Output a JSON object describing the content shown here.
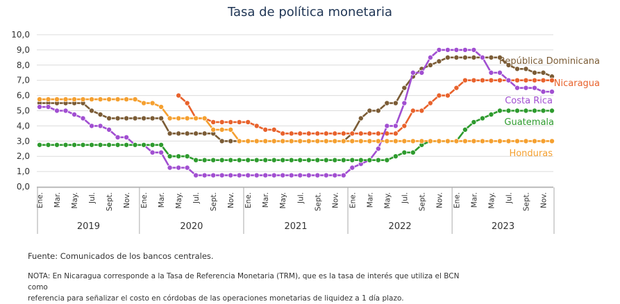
{
  "chart_data": {
    "type": "line",
    "title": "Tasa de política monetaria",
    "xlabel": "",
    "ylabel": "",
    "ylim": [
      0,
      10
    ],
    "y_tick_labels": [
      "0,0",
      "1,0",
      "2,0",
      "3,0",
      "4,0",
      "5,0",
      "6,0",
      "7,0",
      "8,0",
      "9,0",
      "10,0"
    ],
    "grid": "horizontal",
    "legend": "inline labels at right end of series",
    "x_month_labels": [
      "Ene.",
      "Mar.",
      "May.",
      "Jul.",
      "Sept.",
      "Nov."
    ],
    "years": [
      "2019",
      "2020",
      "2021",
      "2022",
      "2023"
    ],
    "x_start": "2019-01",
    "x_end": "2023-11",
    "series": [
      {
        "name": "República Dominicana",
        "color": "#7b5c36",
        "values": [
          5.5,
          5.5,
          5.5,
          5.5,
          5.5,
          5.5,
          5.0,
          4.75,
          4.5,
          4.5,
          4.5,
          4.5,
          4.5,
          4.5,
          4.5,
          3.5,
          3.5,
          3.5,
          3.5,
          3.5,
          3.5,
          3.0,
          3.0,
          3.0,
          3.0,
          3.0,
          3.0,
          3.0,
          3.0,
          3.0,
          3.0,
          3.0,
          3.0,
          3.0,
          3.0,
          3.0,
          3.5,
          4.5,
          5.0,
          5.0,
          5.5,
          5.5,
          6.5,
          7.25,
          7.75,
          8.0,
          8.25,
          8.5,
          8.5,
          8.5,
          8.5,
          8.5,
          8.5,
          8.5,
          8.0,
          7.75,
          7.75,
          7.5,
          7.5,
          7.25
        ]
      },
      {
        "name": "Nicaragua",
        "color": "#e8622c",
        "values": [
          null,
          null,
          null,
          null,
          null,
          null,
          null,
          null,
          null,
          null,
          null,
          null,
          null,
          null,
          null,
          null,
          6.0,
          5.5,
          4.5,
          4.5,
          4.25,
          4.25,
          4.25,
          4.25,
          4.25,
          4.0,
          3.75,
          3.75,
          3.5,
          3.5,
          3.5,
          3.5,
          3.5,
          3.5,
          3.5,
          3.5,
          3.5,
          3.5,
          3.5,
          3.5,
          3.5,
          3.5,
          4.0,
          5.0,
          5.0,
          5.5,
          6.0,
          6.0,
          6.5,
          7.0,
          7.0,
          7.0,
          7.0,
          7.0,
          7.0,
          7.0,
          7.0,
          7.0,
          7.0,
          7.0
        ]
      },
      {
        "name": "Costa Rica",
        "color": "#a14fd1",
        "values": [
          5.25,
          5.25,
          5.0,
          5.0,
          4.75,
          4.5,
          4.0,
          4.0,
          3.75,
          3.25,
          3.25,
          2.75,
          2.75,
          2.25,
          2.25,
          1.25,
          1.25,
          1.25,
          0.75,
          0.75,
          0.75,
          0.75,
          0.75,
          0.75,
          0.75,
          0.75,
          0.75,
          0.75,
          0.75,
          0.75,
          0.75,
          0.75,
          0.75,
          0.75,
          0.75,
          0.75,
          1.25,
          1.5,
          1.75,
          2.5,
          4.0,
          4.0,
          5.5,
          7.5,
          7.5,
          8.5,
          9.0,
          9.0,
          9.0,
          9.0,
          9.0,
          8.5,
          7.5,
          7.5,
          7.0,
          6.5,
          6.5,
          6.5,
          6.25,
          6.25
        ]
      },
      {
        "name": "Guatemala",
        "color": "#2e9b2e",
        "values": [
          2.75,
          2.75,
          2.75,
          2.75,
          2.75,
          2.75,
          2.75,
          2.75,
          2.75,
          2.75,
          2.75,
          2.75,
          2.75,
          2.75,
          2.75,
          2.0,
          2.0,
          2.0,
          1.75,
          1.75,
          1.75,
          1.75,
          1.75,
          1.75,
          1.75,
          1.75,
          1.75,
          1.75,
          1.75,
          1.75,
          1.75,
          1.75,
          1.75,
          1.75,
          1.75,
          1.75,
          1.75,
          1.75,
          1.75,
          1.75,
          1.75,
          2.0,
          2.25,
          2.25,
          2.75,
          3.0,
          3.0,
          3.0,
          3.0,
          3.75,
          4.25,
          4.5,
          4.75,
          5.0,
          5.0,
          5.0,
          5.0,
          5.0,
          5.0,
          5.0
        ]
      },
      {
        "name": "Honduras",
        "color": "#f5a030",
        "values": [
          5.75,
          5.75,
          5.75,
          5.75,
          5.75,
          5.75,
          5.75,
          5.75,
          5.75,
          5.75,
          5.75,
          5.75,
          5.5,
          5.5,
          5.25,
          4.5,
          4.5,
          4.5,
          4.5,
          4.5,
          3.75,
          3.75,
          3.75,
          3.0,
          3.0,
          3.0,
          3.0,
          3.0,
          3.0,
          3.0,
          3.0,
          3.0,
          3.0,
          3.0,
          3.0,
          3.0,
          3.0,
          3.0,
          3.0,
          3.0,
          3.0,
          3.0,
          3.0,
          3.0,
          3.0,
          3.0,
          3.0,
          3.0,
          3.0,
          3.0,
          3.0,
          3.0,
          3.0,
          3.0,
          3.0,
          3.0,
          3.0,
          3.0,
          3.0,
          3.0
        ]
      }
    ]
  },
  "notes": {
    "source": "Fuente: Comunicados de los bancos centrales.",
    "nota_line1": "NOTA: En Nicaragua corresponde a la Tasa de Referencia Monetaria (TRM), que es la tasa de interés que utiliza el BCN como",
    "nota_line2": "referencia para señalizar el costo en córdobas de las operaciones monetarias de liquidez a 1 día plazo."
  }
}
